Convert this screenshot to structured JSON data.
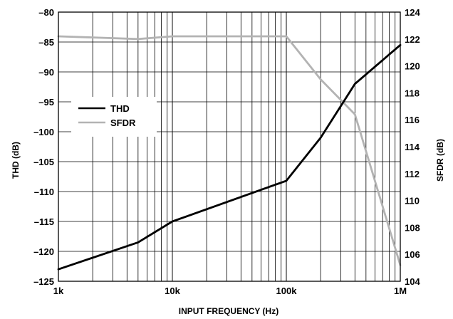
{
  "chart_data": {
    "type": "line",
    "x_scale": "log",
    "x": [
      1000,
      5000,
      10000,
      100000,
      200000,
      400000,
      1000000
    ],
    "xlim": [
      1000,
      1000000
    ],
    "x_ticks": [
      "1k",
      "10k",
      "100k",
      "1M"
    ],
    "xlabel": "INPUT FREQUENCY (Hz)",
    "ylabel_left": "THD (dB)",
    "ylabel_right": "SFDR (dB)",
    "y_left_lim": [
      -125,
      -80
    ],
    "y_left_ticks": [
      "–80",
      "–85",
      "–90",
      "–95",
      "–100",
      "–105",
      "–110",
      "–115",
      "–120",
      "–125"
    ],
    "y_right_lim": [
      104,
      124
    ],
    "y_right_ticks": [
      "124",
      "122",
      "120",
      "118",
      "116",
      "114",
      "112",
      "110",
      "108",
      "106",
      "104"
    ],
    "grid": true,
    "legend_position": "upper-left",
    "series": [
      {
        "name": "THD",
        "axis": "left",
        "color": "#000000",
        "values": [
          -123,
          -118.5,
          -115,
          -108.2,
          -101,
          -92,
          -85.5
        ]
      },
      {
        "name": "SFDR",
        "axis": "right",
        "color": "#b3b3b3",
        "values": [
          122.2,
          122.0,
          122.2,
          122.2,
          119,
          116.4,
          105.2
        ]
      }
    ]
  }
}
